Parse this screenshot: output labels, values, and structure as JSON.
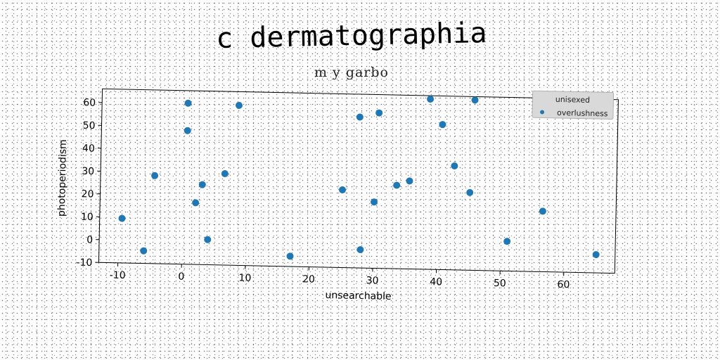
{
  "chart_data": {
    "type": "scatter",
    "title": "c dermatographia",
    "subtitle": "m y garbo",
    "xlabel": "unsearchable",
    "ylabel": "photoperiodism",
    "xlim": [
      -13,
      68
    ],
    "ylim": [
      -10,
      66
    ],
    "xticks": [
      -10,
      0,
      10,
      20,
      30,
      40,
      50,
      60
    ],
    "yticks": [
      -10,
      0,
      10,
      20,
      30,
      40,
      50,
      60
    ],
    "grid": false,
    "legend": {
      "title": "unisexed",
      "placement": "top-right"
    },
    "series": [
      {
        "name": "overlushness",
        "color": "#1f77b4",
        "x": [
          0.5,
          8.5,
          0.5,
          -4.5,
          -9.5,
          -6,
          2,
          3,
          4,
          6.5,
          17,
          25,
          28,
          27.5,
          30.5,
          30,
          33.5,
          35.5,
          38.5,
          40.5,
          42.5,
          45.5,
          45,
          51,
          56.5,
          65
        ],
        "y": [
          60.5,
          60,
          48.5,
          28.5,
          9.5,
          -4.5,
          17,
          25,
          1,
          30,
          -5.5,
          24,
          -2,
          56,
          58,
          19,
          26.5,
          28.5,
          64.5,
          53.5,
          35.5,
          64.5,
          24,
          3,
          16.5,
          -2
        ]
      }
    ]
  }
}
